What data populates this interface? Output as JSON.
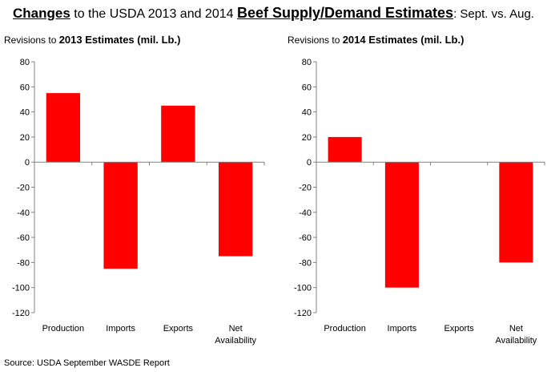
{
  "title": {
    "part1": "Changes",
    "part2": " to the USDA 2013 and 2014 ",
    "part3": "Beef Supply/Demand Estimates",
    "part4": ":  Sept. vs. Aug."
  },
  "source": "Source:  USDA September WASDE Report",
  "colors": {
    "bar": "#ff0000",
    "axis": "#808080"
  },
  "chart_data": [
    {
      "type": "bar",
      "title_prefix": "Revisions to ",
      "title_bold": "2013 Estimates (mil. Lb.)",
      "categories": [
        "Production",
        "Imports",
        "Exports",
        "Net Availability"
      ],
      "category_lines": [
        [
          "Production"
        ],
        [
          "Imports"
        ],
        [
          "Exports"
        ],
        [
          "Net",
          "Availability"
        ]
      ],
      "values": [
        55,
        -85,
        45,
        -75
      ],
      "ylim": [
        -120,
        80
      ],
      "yticks": [
        80,
        60,
        40,
        20,
        0,
        -20,
        -40,
        -60,
        -80,
        -100,
        -120
      ],
      "grid": false,
      "legend": "none"
    },
    {
      "type": "bar",
      "title_prefix": "Revisions to ",
      "title_bold": "2014 Estimates (mil. Lb.)",
      "categories": [
        "Production",
        "Imports",
        "Exports",
        "Net Availability"
      ],
      "category_lines": [
        [
          "Production"
        ],
        [
          "Imports"
        ],
        [
          "Exports"
        ],
        [
          "Net",
          "Availability"
        ]
      ],
      "values": [
        20,
        -100,
        0,
        -80
      ],
      "ylim": [
        -120,
        80
      ],
      "yticks": [
        80,
        60,
        40,
        20,
        0,
        -20,
        -40,
        -60,
        -80,
        -100,
        -120
      ],
      "grid": false,
      "legend": "none"
    }
  ]
}
